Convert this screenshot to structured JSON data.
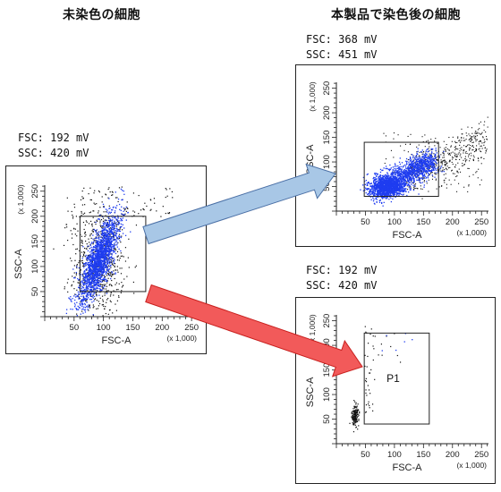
{
  "headings": {
    "unstained": "未染色の細胞",
    "stained": "本製品で染色後の細胞"
  },
  "panels": [
    {
      "id": "unstained",
      "settings": [
        {
          "label": "FSC:",
          "value": "192 mV"
        },
        {
          "label": "SSC:",
          "value": "420 mV"
        }
      ],
      "plot": {
        "x_label": "FSC-A",
        "y_label": "SSC-A",
        "x_multiplier": "(x 1,000)",
        "y_multiplier": "(x 1,000)",
        "x_ticks": [
          "50",
          "100",
          "150",
          "200",
          "250"
        ],
        "y_ticks": [
          "50",
          "100",
          "150",
          "200",
          "250"
        ],
        "gate_label": ""
      }
    },
    {
      "id": "stained-upper",
      "settings": [
        {
          "label": "FSC:",
          "value": "368 mV"
        },
        {
          "label": "SSC:",
          "value": "451 mV"
        }
      ],
      "plot": {
        "x_label": "FSC-A",
        "y_label": "SSC-A",
        "x_multiplier": "(x 1,000)",
        "y_multiplier": "(x 1,000)",
        "x_ticks": [
          "50",
          "100",
          "150",
          "200",
          "250"
        ],
        "y_ticks": [
          "50",
          "100",
          "150",
          "200",
          "250"
        ],
        "gate_label": ""
      }
    },
    {
      "id": "stained-lower",
      "settings": [
        {
          "label": "FSC:",
          "value": "192 mV"
        },
        {
          "label": "SSC:",
          "value": "420 mV"
        }
      ],
      "plot": {
        "x_label": "FSC-A",
        "y_label": "SSC-A",
        "x_multiplier": "(x 1,000)",
        "y_multiplier": "(x 1,000)",
        "x_ticks": [
          "50",
          "100",
          "150",
          "200",
          "250"
        ],
        "y_ticks": [
          "50",
          "100",
          "150",
          "200",
          "250"
        ],
        "gate_label": "P1"
      }
    }
  ],
  "colors": {
    "dots_blue": "#1f3df0",
    "dots_black": "#111111",
    "arrow_blue_fill": "#a8c7e6",
    "arrow_blue_stroke": "#4a6fa5",
    "arrow_red_fill": "#f25a5a",
    "arrow_red_stroke": "#c8201e"
  },
  "arrows": [
    {
      "name": "arrow-to-stained-upper",
      "color": "blue"
    },
    {
      "name": "arrow-to-stained-lower",
      "color": "red"
    }
  ]
}
